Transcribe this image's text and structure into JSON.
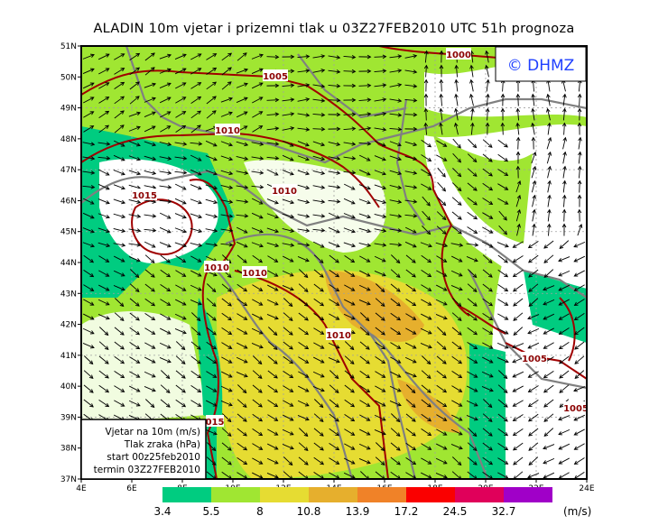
{
  "title": "ALADIN 10m vjetar i prizemni tlak u 03Z27FEB2010 UTC 51h prognoza",
  "watermark": "© DHMZ",
  "axes": {
    "lat_labels": [
      "37N",
      "38N",
      "39N",
      "40N",
      "41N",
      "42N",
      "43N",
      "44N",
      "45N",
      "46N",
      "47N",
      "48N",
      "49N",
      "50N",
      "51N"
    ],
    "lon_labels": [
      "4E",
      "6E",
      "8E",
      "10E",
      "12E",
      "14E",
      "16E",
      "18E",
      "20E",
      "22E",
      "24E"
    ]
  },
  "isobar_labels": [
    "1000",
    "1005",
    "1010",
    "1010",
    "1015",
    "1010",
    "1010",
    "1010",
    "1005",
    "1005",
    "015"
  ],
  "info_box": {
    "line1": "Vjetar na 10m (m/s)",
    "line2": "Tlak zraka (hPa)",
    "line3": "start 00z25feb2010",
    "line4": "termin 03Z27FEB2010"
  },
  "legend": {
    "thresholds": [
      "3.4",
      "5.5",
      "8",
      "10.8",
      "13.9",
      "17.2",
      "24.5",
      "32.7"
    ],
    "unit": "(m/s)",
    "colors": [
      "#00cc80",
      "#a0e632",
      "#e6dc32",
      "#e6af2d",
      "#f08228",
      "#fa0000",
      "#e0005a",
      "#a000c8"
    ]
  },
  "colors": {
    "isobar": "#a00000",
    "border": "#808080",
    "grid": "#a0a0a0"
  }
}
